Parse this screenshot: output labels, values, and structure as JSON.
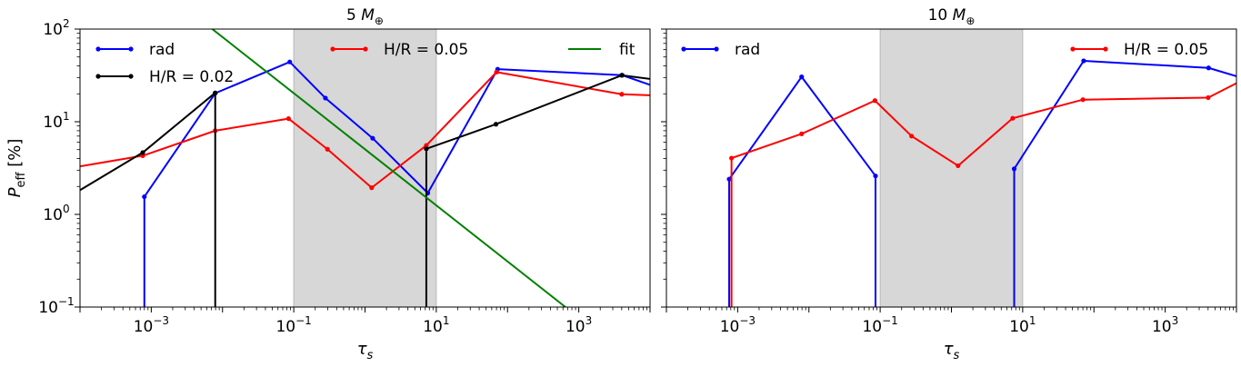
{
  "colors": {
    "rad": "#0000ff",
    "h005": "#ff0000",
    "h002": "#000000",
    "fit": "#008000",
    "band": "#d3d3d3"
  },
  "chart_data": [
    {
      "type": "line",
      "title": "5 M",
      "title_subscript": "⊕",
      "xlabel": "τ",
      "xlabel_subscript": "s",
      "ylabel": "P",
      "ylabel_subscript": "eff",
      "ylabel_unit": " [%]",
      "xscale": "log",
      "yscale": "log",
      "xlim": [
        0.0001,
        10000
      ],
      "ylim": [
        0.1,
        100
      ],
      "x_ticks": [
        {
          "v": 0.001,
          "b": "10",
          "e": "−3"
        },
        {
          "v": 0.1,
          "b": "10",
          "e": "−1"
        },
        {
          "v": 10,
          "b": "10",
          "e": "1"
        },
        {
          "v": 1000,
          "b": "10",
          "e": "3"
        }
      ],
      "y_ticks": [
        {
          "v": 0.1,
          "b": "10",
          "e": "−1"
        },
        {
          "v": 1,
          "b": "10",
          "e": "0"
        },
        {
          "v": 10,
          "b": "10",
          "e": "1"
        },
        {
          "v": 100,
          "b": "10",
          "e": "2"
        }
      ],
      "shaded_x": [
        0.1,
        10
      ],
      "series": [
        {
          "name": "rad",
          "color": "#0000ff",
          "markers": true,
          "x": [
            0.0008,
            0.0008,
            0.0079,
            0.0879,
            0.278,
            1.28,
            7.6,
            7.6,
            72.6,
            4064,
            10000
          ],
          "y": [
            0.05,
            1.55,
            20.3,
            44.2,
            18.0,
            6.63,
            1.7,
            1.7,
            36.9,
            31.8,
            25
          ],
          "marker_idx": [
            1,
            2,
            3,
            4,
            5,
            6,
            8,
            9
          ]
        },
        {
          "name": "H/R = 0.05",
          "color": "#ff0000",
          "markers": true,
          "x": [
            7e-05,
            0.00076,
            0.0079,
            0.0844,
            0.297,
            1.24,
            7.25,
            70,
            4008,
            10000
          ],
          "y": [
            3.15,
            4.3,
            8.0,
            10.8,
            5.05,
            1.94,
            5.55,
            34.3,
            19.8,
            19.3
          ],
          "marker_idx": [
            0,
            1,
            2,
            3,
            4,
            5,
            6,
            7,
            8
          ]
        },
        {
          "name": "H/R = 0.02",
          "color": "#000000",
          "markers": true,
          "x": [
            7e-05,
            0.00076,
            0.0079,
            0.0079,
            7.25,
            7.25,
            68.8,
            4008,
            10000
          ],
          "y": [
            1.55,
            4.65,
            20.5,
            0.05,
            0.05,
            5.1,
            9.4,
            31.7,
            29
          ],
          "marker_idx": [
            0,
            1,
            2,
            5,
            6,
            7
          ]
        },
        {
          "name": "fit",
          "color": "#008000",
          "markers": false,
          "x": [
            0.00555,
            650
          ],
          "y": [
            117,
            0.1
          ],
          "marker_idx": []
        }
      ],
      "legend": [
        {
          "label": "rad",
          "color": "#0000ff",
          "markers": true
        },
        {
          "label": "H/R = 0.05",
          "color": "#ff0000",
          "markers": true
        },
        {
          "label": "fit",
          "color": "#008000",
          "markers": false
        },
        {
          "label": "H/R = 0.02",
          "color": "#000000",
          "markers": true
        }
      ]
    },
    {
      "type": "line",
      "title": "10 M",
      "title_subscript": "⊕",
      "xlabel": "τ",
      "xlabel_subscript": "s",
      "xscale": "log",
      "yscale": "log",
      "xlim": [
        0.0001,
        10000
      ],
      "ylim": [
        0.1,
        100
      ],
      "x_ticks": [
        {
          "v": 0.001,
          "b": "10",
          "e": "−3"
        },
        {
          "v": 0.1,
          "b": "10",
          "e": "−1"
        },
        {
          "v": 10,
          "b": "10",
          "e": "1"
        },
        {
          "v": 1000,
          "b": "10",
          "e": "3"
        }
      ],
      "y_ticks": [
        {
          "v": 0.1
        },
        {
          "v": 1
        },
        {
          "v": 10
        },
        {
          "v": 100
        }
      ],
      "shaded_x": [
        0.1,
        10
      ],
      "series": [
        {
          "name": "rad",
          "color": "#0000ff",
          "markers": true,
          "x": [
            0.00076,
            0.00076,
            0.0079,
            0.086,
            0.086,
            7.6,
            7.6,
            71.7,
            4064,
            10000
          ],
          "y": [
            0.05,
            2.4,
            30.5,
            2.6,
            0.05,
            0.05,
            3.1,
            45.4,
            38.1,
            31
          ],
          "marker_idx": [
            1,
            2,
            3,
            6,
            7,
            8
          ]
        },
        {
          "name": "H/R = 0.05",
          "color": "#ff0000",
          "markers": true,
          "x": [
            0.00082,
            0.00082,
            0.0079,
            0.0844,
            0.276,
            1.24,
            7.25,
            70,
            4008,
            10000
          ],
          "y": [
            0.05,
            4.05,
            7.4,
            16.9,
            7.0,
            3.35,
            10.9,
            17.3,
            18.2,
            26
          ],
          "marker_idx": [
            1,
            2,
            3,
            4,
            5,
            6,
            7,
            8
          ]
        }
      ],
      "legend": [
        {
          "label": "rad",
          "color": "#0000ff",
          "markers": true
        },
        {
          "label": "H/R = 0.05",
          "color": "#ff0000",
          "markers": true
        }
      ]
    }
  ]
}
